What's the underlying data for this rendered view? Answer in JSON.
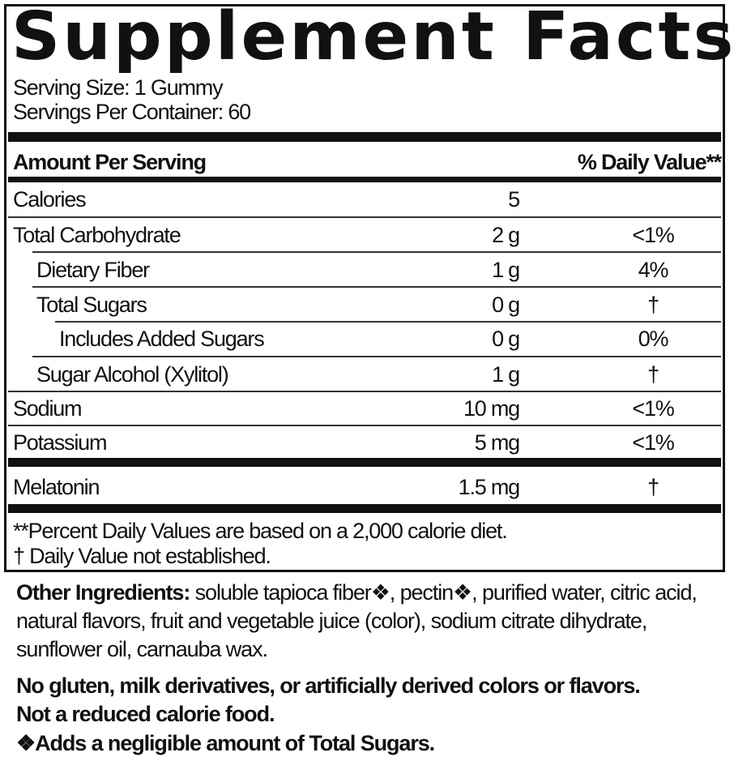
{
  "title": "Supplement Facts",
  "serving_size": "Serving Size: 1 Gummy",
  "servings_per_container": "Servings Per Container: 60",
  "header": {
    "amount": "Amount Per Serving",
    "dv": "% Daily Value**"
  },
  "rows": [
    {
      "name": "Calories",
      "amount": "5",
      "dv": ""
    },
    {
      "name": "Total Carbohydrate",
      "amount": "2 g",
      "dv": "<1%"
    },
    {
      "name": "Dietary Fiber",
      "amount": "1 g",
      "dv": "4%"
    },
    {
      "name": "Total Sugars",
      "amount": "0 g",
      "dv": "†"
    },
    {
      "name": "Includes Added Sugars",
      "amount": "0 g",
      "dv": "0%"
    },
    {
      "name": "Sugar Alcohol (Xylitol)",
      "amount": "1 g",
      "dv": "†"
    },
    {
      "name": "Sodium",
      "amount": "10 mg",
      "dv": "<1%"
    },
    {
      "name": "Potassium",
      "amount": "5 mg",
      "dv": "<1%"
    },
    {
      "name": "Melatonin",
      "amount": "1.5 mg",
      "dv": "†"
    }
  ],
  "footnotes": [
    "**Percent Daily Values are based on a 2,000 calorie diet.",
    "† Daily Value not established."
  ],
  "other_ingredients": {
    "label": "Other Ingredients:",
    "lines": [
      " soluble tapioca fiber❖, pectin❖, purified water, citric acid,",
      "natural flavors, fruit and vegetable juice (color), sodium citrate dihydrate,",
      "sunflower oil, carnauba wax."
    ]
  },
  "statements": [
    "No gluten, milk derivatives, or artificially derived colors or flavors.",
    "Not a reduced calorie food.",
    "❖Adds a negligible amount of Total Sugars."
  ]
}
